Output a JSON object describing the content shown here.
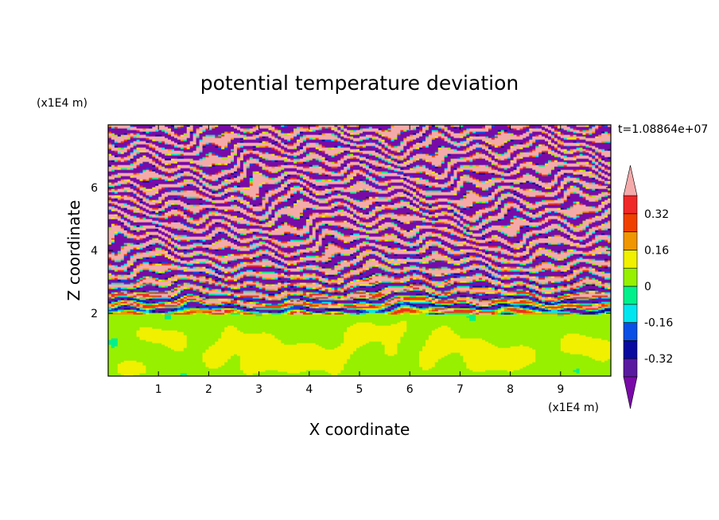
{
  "chart_data": {
    "type": "heatmap",
    "title": "potential temperature deviation",
    "xlabel": "X coordinate",
    "ylabel": "Z coordinate",
    "x_unit": "(x1E4 m)",
    "y_unit": "(x1E4 m)",
    "time_label": "t=1.08864e+07",
    "xlim": [
      0,
      10
    ],
    "ylim": [
      0,
      8
    ],
    "x_ticks": [
      1,
      2,
      3,
      4,
      5,
      6,
      7,
      8,
      9
    ],
    "y_ticks": [
      2,
      4,
      6
    ],
    "x_tick_labels": [
      "1",
      "2",
      "3",
      "4",
      "5",
      "6",
      "7",
      "8",
      "9"
    ],
    "y_tick_labels": [
      "2",
      "4",
      "6"
    ],
    "colorbar": {
      "levels": [
        -0.4,
        -0.32,
        -0.24,
        -0.16,
        -0.08,
        0,
        0.08,
        0.16,
        0.24,
        0.32,
        0.4
      ],
      "labels": [
        "0.32",
        "0.16",
        "0",
        "-0.16",
        "-0.32"
      ],
      "label_values": [
        0.32,
        0.16,
        0,
        -0.16,
        -0.32
      ],
      "colors_low_to_high": [
        "#7a0aa8",
        "#5a1aa0",
        "#0a0aa0",
        "#0a50e6",
        "#00e6f0",
        "#00f08c",
        "#96f000",
        "#f0f000",
        "#f09600",
        "#f04000",
        "#f02828",
        "#f5aaaa"
      ],
      "extend": "both"
    },
    "field_summary": {
      "z_0_to_2": "near zero values (0 to 0.08) with patches of 0.08-0.16",
      "z_2_to_4_5": "turbulent mixing, values spanning full range",
      "z_4_5_to_8": "layered horizontal bands alternating below -0.4 and above 0.4"
    }
  },
  "colors": {
    "background": "#ffffff",
    "axes": "#000000"
  }
}
